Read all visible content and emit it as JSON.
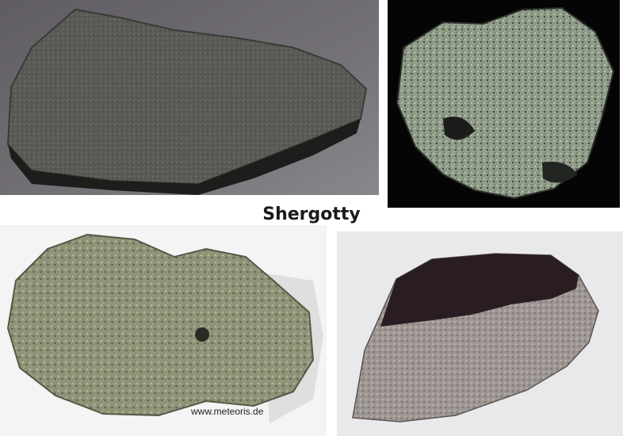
{
  "title": "Shergotty",
  "credit": "www.meteoris.de",
  "colors": {
    "panel1_bg": "#6d6a70",
    "panel2_bg": "#050505",
    "panel3_bg": "#f4f4f4",
    "panel4_bg": "#e9e9ec"
  }
}
